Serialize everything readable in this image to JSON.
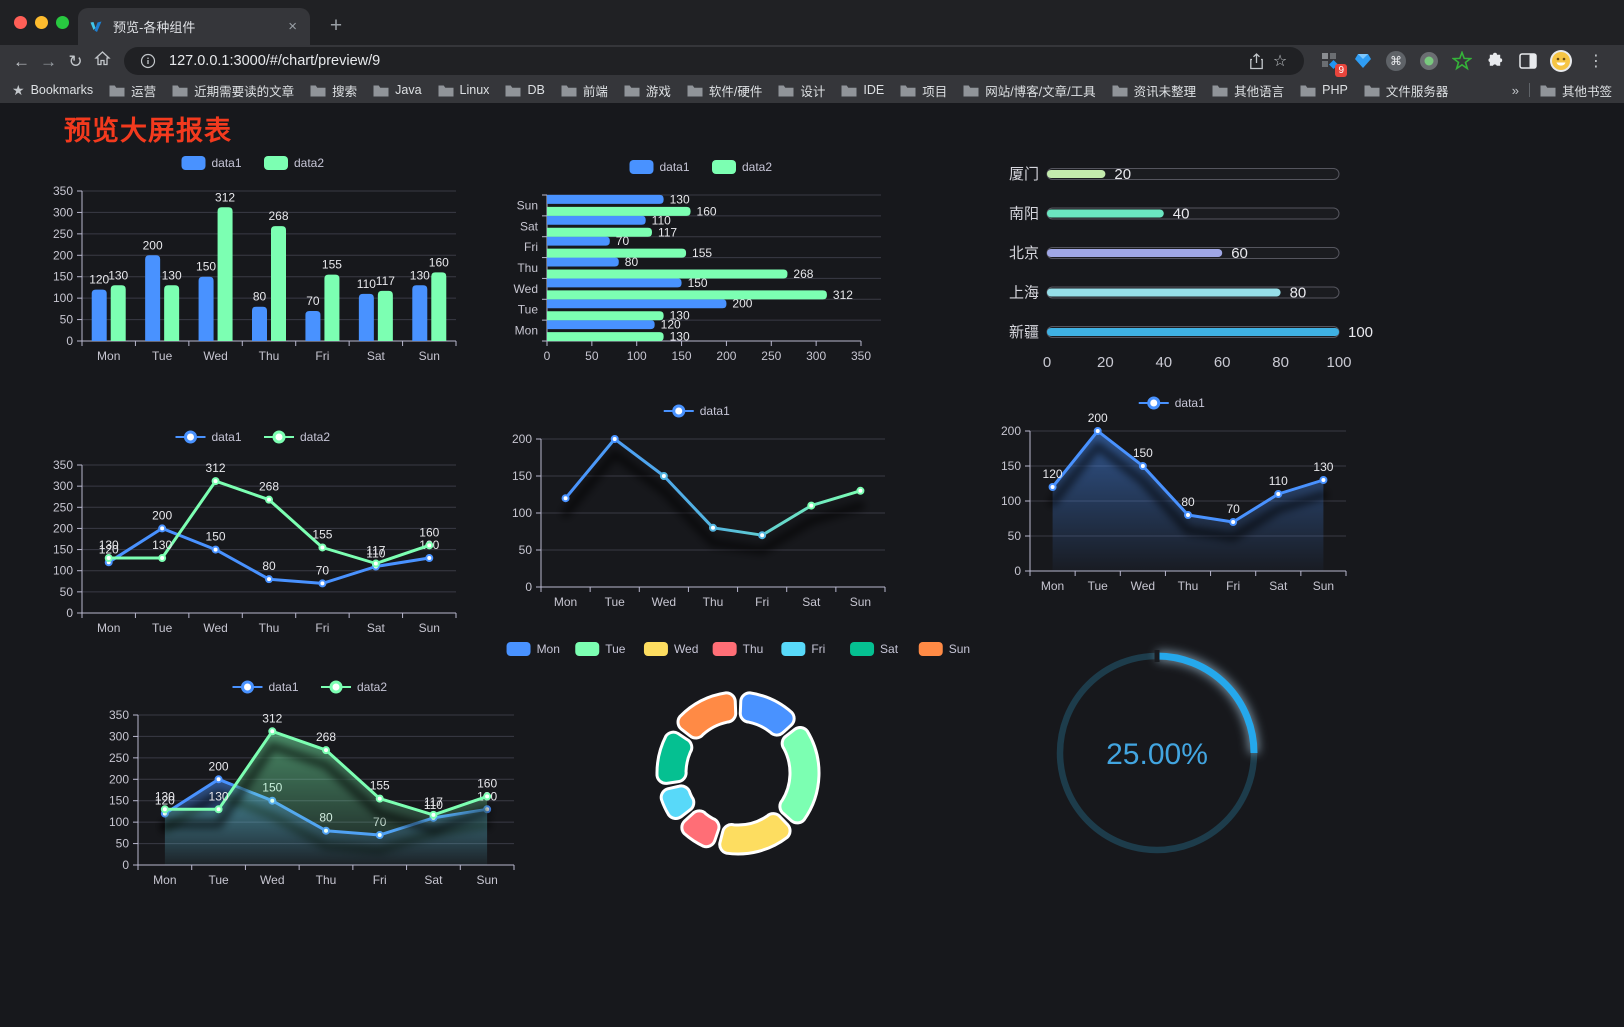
{
  "browser": {
    "tab": {
      "title": "预览-各种组件",
      "close_glyph": "×"
    },
    "new_tab_glyph": "+",
    "toolbar": {
      "back_glyph": "←",
      "forward_glyph": "→",
      "reload_glyph": "↻",
      "url": "127.0.0.1:3000/#/chart/preview/9",
      "star_glyph": "☆",
      "extension_badge": "9",
      "command_glyph": "⌘",
      "menu_glyph": "⋮"
    },
    "bookmarks": {
      "star_glyph": "★",
      "label": "Bookmarks",
      "folders": [
        "运营",
        "近期需要读的文章",
        "搜索",
        "Java",
        "Linux",
        "DB",
        "前端",
        "游戏",
        "软件/硬件",
        "设计",
        "IDE",
        "项目",
        "网站/博客/文章/工具",
        "资讯未整理",
        "其他语言",
        "PHP",
        "文件服务器"
      ],
      "overflow_glyph": "»",
      "other_bookmarks": "其他书签"
    }
  },
  "page": {
    "title": "预览大屏报表",
    "title_color": "#f33a1e"
  },
  "chart_data": [
    {
      "id": "bar-grouped",
      "type": "bar",
      "categories": [
        "Mon",
        "Tue",
        "Wed",
        "Thu",
        "Fri",
        "Sat",
        "Sun"
      ],
      "series": [
        {
          "name": "data1",
          "color": "#4992ff",
          "values": [
            120,
            200,
            150,
            80,
            70,
            110,
            130
          ]
        },
        {
          "name": "data2",
          "color": "#7cffb2",
          "values": [
            130,
            130,
            312,
            268,
            155,
            117,
            160
          ]
        }
      ],
      "ylim": [
        0,
        350
      ],
      "ytick_step": 50,
      "value_labels": true,
      "legend_position": "top",
      "grid": true
    },
    {
      "id": "bar-horizontal",
      "type": "hbar",
      "categories": [
        "Mon",
        "Tue",
        "Wed",
        "Thu",
        "Fri",
        "Sat",
        "Sun"
      ],
      "series": [
        {
          "name": "data1",
          "color": "#4992ff",
          "values": [
            120,
            200,
            150,
            80,
            70,
            110,
            130
          ]
        },
        {
          "name": "data2",
          "color": "#7cffb2",
          "values": [
            130,
            130,
            312,
            268,
            155,
            117,
            160
          ]
        }
      ],
      "xlim": [
        0,
        350
      ],
      "xtick_step": 50,
      "value_labels": true,
      "legend_position": "top",
      "grid": true
    },
    {
      "id": "city-progress",
      "type": "progress",
      "items": [
        {
          "label": "厦门",
          "value": 20,
          "color": "#c4ebad"
        },
        {
          "label": "南阳",
          "value": 40,
          "color": "#6be6c1"
        },
        {
          "label": "北京",
          "value": 60,
          "color": "#a0a7e6"
        },
        {
          "label": "上海",
          "value": 80,
          "color": "#96dee8"
        },
        {
          "label": "新疆",
          "value": 100,
          "color": "#3fb1e3"
        }
      ],
      "max": 100,
      "ticks": [
        0,
        20,
        40,
        60,
        80,
        100
      ]
    },
    {
      "id": "line-grouped",
      "type": "line",
      "categories": [
        "Mon",
        "Tue",
        "Wed",
        "Thu",
        "Fri",
        "Sat",
        "Sun"
      ],
      "series": [
        {
          "name": "data1",
          "color": "#4992ff",
          "values": [
            120,
            200,
            150,
            80,
            70,
            110,
            130
          ]
        },
        {
          "name": "data2",
          "color": "#7cffb2",
          "values": [
            130,
            130,
            312,
            268,
            155,
            117,
            160
          ]
        }
      ],
      "ylim": [
        0,
        350
      ],
      "ytick_step": 50,
      "value_labels": true,
      "legend_position": "top",
      "grid": true
    },
    {
      "id": "line-gradient",
      "type": "line",
      "categories": [
        "Mon",
        "Tue",
        "Wed",
        "Thu",
        "Fri",
        "Sat",
        "Sun"
      ],
      "series": [
        {
          "name": "data1",
          "color": "#4992ff",
          "gradient": [
            "#4992ff",
            "#53b5e0",
            "#7cffb2"
          ],
          "shadow": true,
          "values": [
            120,
            200,
            150,
            80,
            70,
            110,
            130
          ]
        }
      ],
      "ylim": [
        0,
        200
      ],
      "ytick_step": 50,
      "value_labels": false,
      "legend_position": "top",
      "grid": true
    },
    {
      "id": "area-single",
      "type": "line",
      "categories": [
        "Mon",
        "Tue",
        "Wed",
        "Thu",
        "Fri",
        "Sat",
        "Sun"
      ],
      "series": [
        {
          "name": "data1",
          "color": "#4992ff",
          "area": true,
          "shadow": true,
          "values": [
            120,
            200,
            150,
            80,
            70,
            110,
            130
          ]
        }
      ],
      "ylim": [
        0,
        200
      ],
      "ytick_step": 50,
      "value_labels": true,
      "legend_position": "top",
      "grid": true
    },
    {
      "id": "area-grouped",
      "type": "line",
      "categories": [
        "Mon",
        "Tue",
        "Wed",
        "Thu",
        "Fri",
        "Sat",
        "Sun"
      ],
      "series": [
        {
          "name": "data1",
          "color": "#4992ff",
          "area": true,
          "shadow": true,
          "values": [
            120,
            200,
            150,
            80,
            70,
            110,
            130
          ]
        },
        {
          "name": "data2",
          "color": "#7cffb2",
          "area": true,
          "shadow": true,
          "values": [
            130,
            130,
            312,
            268,
            155,
            117,
            160
          ]
        }
      ],
      "ylim": [
        0,
        350
      ],
      "ytick_step": 50,
      "value_labels": true,
      "legend_position": "top",
      "grid": true
    },
    {
      "id": "week-donut",
      "type": "pie",
      "donut": true,
      "labels": [
        "Mon",
        "Tue",
        "Wed",
        "Thu",
        "Fri",
        "Sat",
        "Sun"
      ],
      "values": [
        120,
        200,
        150,
        80,
        70,
        110,
        130
      ],
      "colors": [
        "#4992ff",
        "#7cffb2",
        "#fddd60",
        "#ff6e76",
        "#58d9f9",
        "#05c091",
        "#ff8a45"
      ],
      "legend_position": "top"
    },
    {
      "id": "percent-gauge",
      "type": "gauge",
      "value": 25,
      "max": 100,
      "display": "25.00%",
      "arc_color": "#25a8ec",
      "track_color": "#1d3c4b",
      "text_color": "#42a5e0"
    }
  ]
}
